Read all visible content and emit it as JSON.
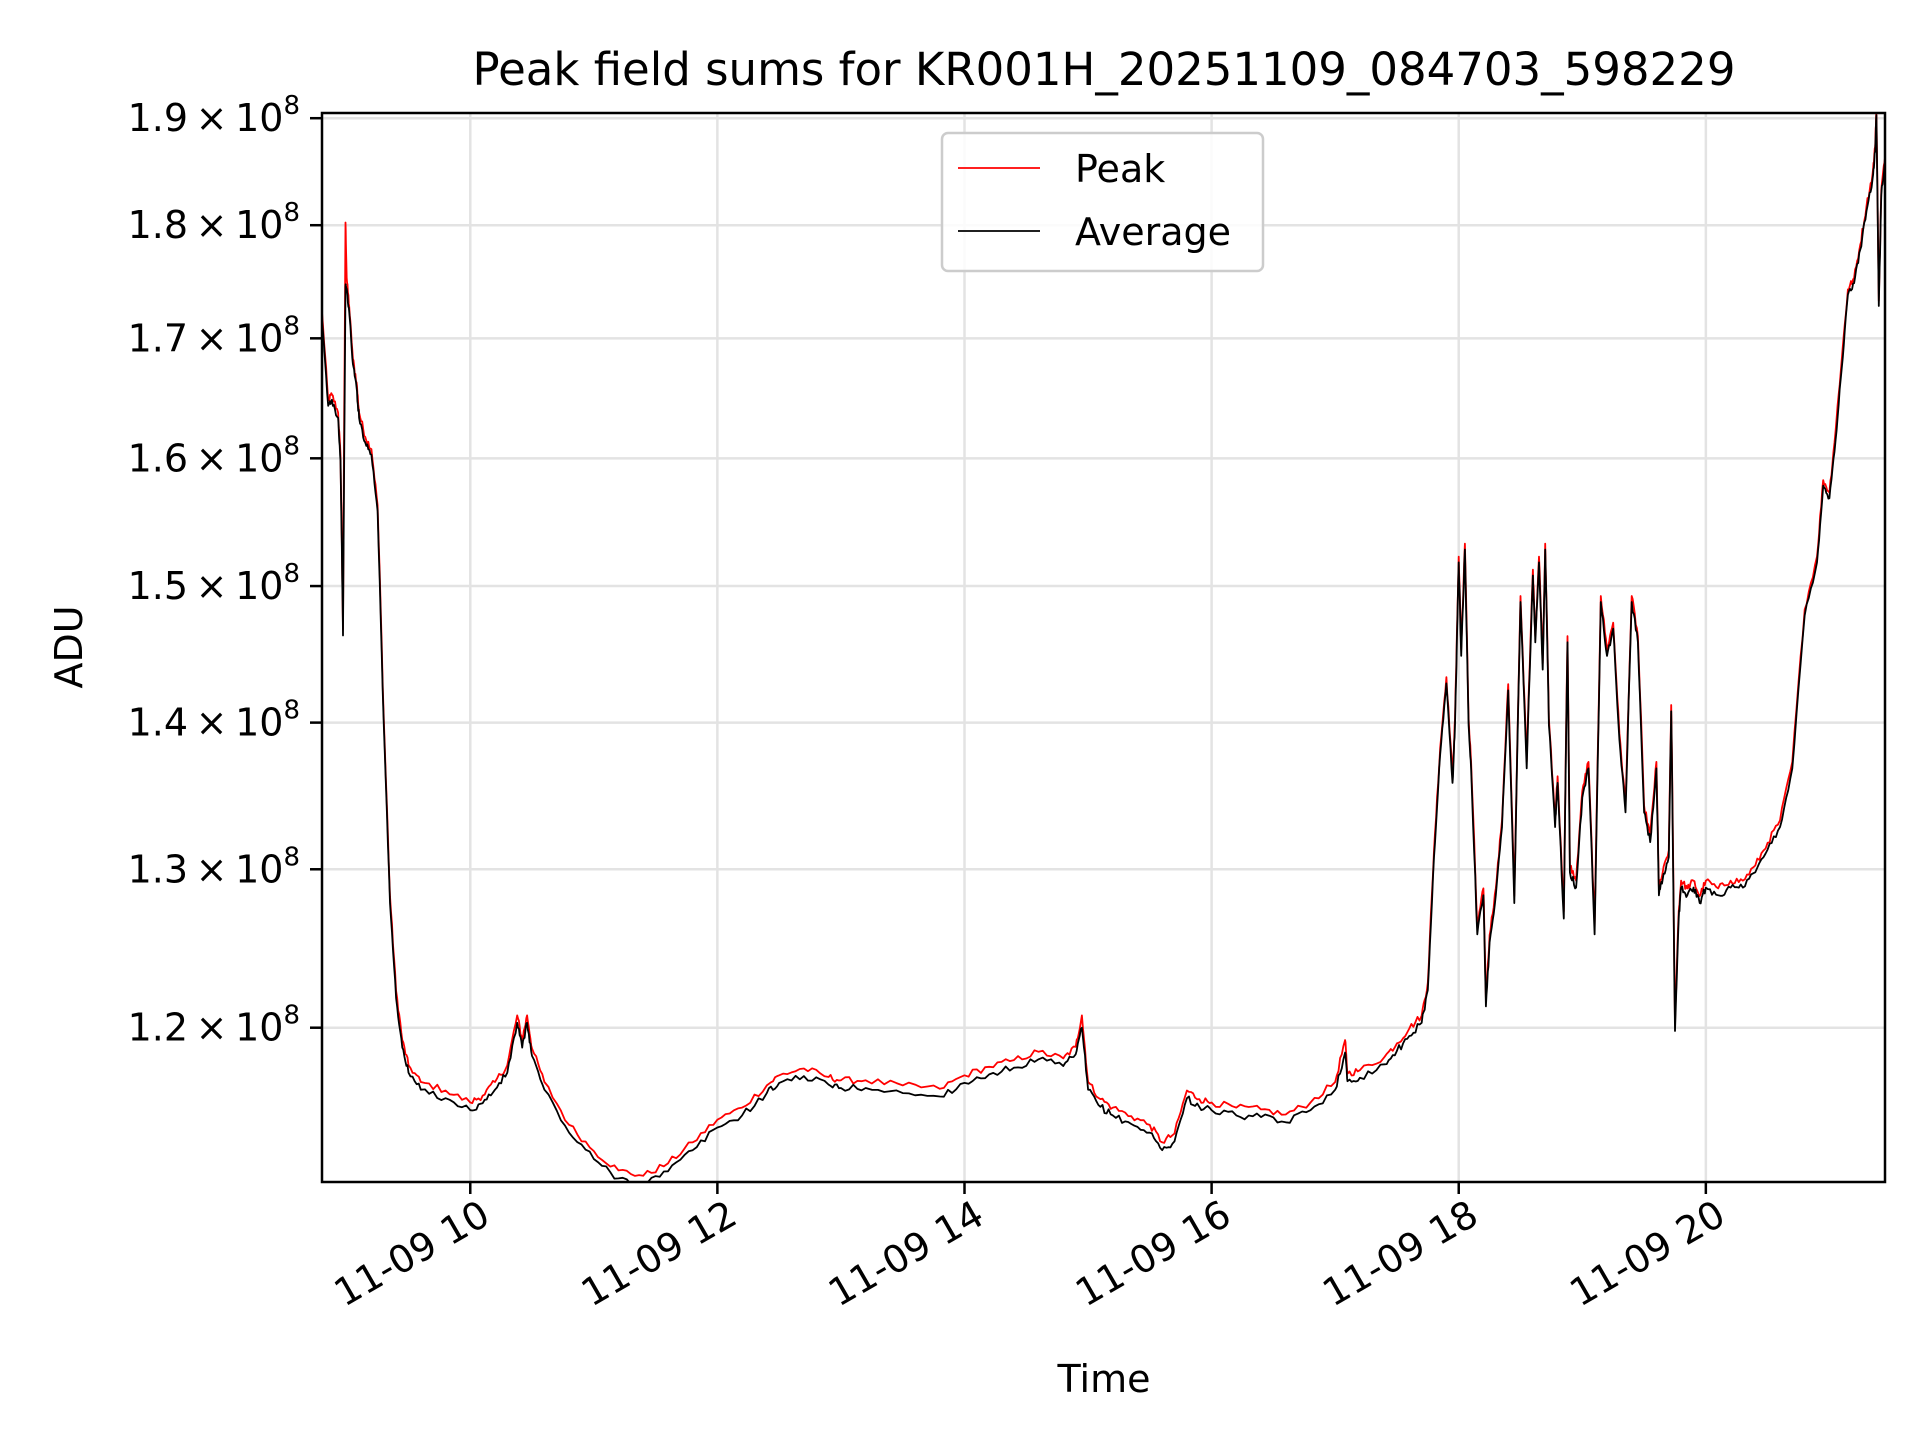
{
  "chart_data": {
    "type": "line",
    "title": "Peak field sums for KR001H_20251109_084703_598229",
    "xlabel": "Time",
    "ylabel": "ADU",
    "yscale": "log",
    "grid": true,
    "legend_position": "upper center",
    "xlim": [
      8.8,
      21.45
    ],
    "ylim": [
      111000000,
      190500000
    ],
    "x_ticks": [
      {
        "value": 10,
        "label": "11-09 10"
      },
      {
        "value": 12,
        "label": "11-09 12"
      },
      {
        "value": 14,
        "label": "11-09 14"
      },
      {
        "value": 16,
        "label": "11-09 16"
      },
      {
        "value": 18,
        "label": "11-09 18"
      },
      {
        "value": 20,
        "label": "11-09 20"
      }
    ],
    "y_ticks": [
      {
        "value": 120000000,
        "mantissa": "1.2",
        "times": "×",
        "base": "10",
        "exponent": "8"
      },
      {
        "value": 130000000,
        "mantissa": "1.3",
        "times": "×",
        "base": "10",
        "exponent": "8"
      },
      {
        "value": 140000000,
        "mantissa": "1.4",
        "times": "×",
        "base": "10",
        "exponent": "8"
      },
      {
        "value": 150000000,
        "mantissa": "1.5",
        "times": "×",
        "base": "10",
        "exponent": "8"
      },
      {
        "value": 160000000,
        "mantissa": "1.6",
        "times": "×",
        "base": "10",
        "exponent": "8"
      },
      {
        "value": 170000000,
        "mantissa": "1.7",
        "times": "×",
        "base": "10",
        "exponent": "8"
      },
      {
        "value": 180000000,
        "mantissa": "1.8",
        "times": "×",
        "base": "10",
        "exponent": "8"
      },
      {
        "value": 190000000,
        "mantissa": "1.9",
        "times": "×",
        "base": "10",
        "exponent": "8"
      }
    ],
    "series": [
      {
        "name": "Peak",
        "color": "#ff0000",
        "offset": 250000,
        "x": [
          8.8,
          8.85,
          8.88,
          8.93,
          8.95,
          8.97,
          8.99,
          9.0,
          9.02,
          9.05,
          9.08,
          9.1,
          9.15,
          9.2,
          9.25,
          9.3,
          9.35,
          9.4,
          9.45,
          9.5,
          9.6,
          9.8,
          10.0,
          10.1,
          10.2,
          10.3,
          10.38,
          10.42,
          10.46,
          10.5,
          10.6,
          10.8,
          11.0,
          11.2,
          11.4,
          11.6,
          11.8,
          12.0,
          12.2,
          12.4,
          12.5,
          12.7,
          12.9,
          13.0,
          13.2,
          13.5,
          13.8,
          14.0,
          14.2,
          14.4,
          14.6,
          14.8,
          14.9,
          14.95,
          15.0,
          15.1,
          15.2,
          15.35,
          15.5,
          15.6,
          15.7,
          15.8,
          15.9,
          16.0,
          16.2,
          16.4,
          16.6,
          16.8,
          17.0,
          17.08,
          17.1,
          17.2,
          17.4,
          17.5,
          17.6,
          17.7,
          17.75,
          17.8,
          17.85,
          17.9,
          17.95,
          17.97,
          18.0,
          18.02,
          18.05,
          18.08,
          18.1,
          18.15,
          18.2,
          18.22,
          18.25,
          18.3,
          18.35,
          18.4,
          18.45,
          18.5,
          18.55,
          18.6,
          18.62,
          18.65,
          18.68,
          18.7,
          18.73,
          18.78,
          18.8,
          18.85,
          18.88,
          18.9,
          18.95,
          19.0,
          19.05,
          19.1,
          19.15,
          19.2,
          19.25,
          19.3,
          19.35,
          19.4,
          19.45,
          19.5,
          19.55,
          19.6,
          19.62,
          19.65,
          19.7,
          19.72,
          19.75,
          19.78,
          19.8,
          19.85,
          19.9,
          19.95,
          20.0,
          20.1,
          20.2,
          20.3,
          20.4,
          20.5,
          20.6,
          20.7,
          20.8,
          20.9,
          20.95,
          21.0,
          21.05,
          21.1,
          21.15,
          21.2,
          21.25,
          21.3,
          21.35,
          21.37,
          21.38,
          21.4,
          21.42,
          21.45
        ],
        "values": [
          172000000,
          164500000,
          165000000,
          163500000,
          160000000,
          146500000,
          180000000,
          175000000,
          172500000,
          168000000,
          166000000,
          163500000,
          161500000,
          160500000,
          156000000,
          140000000,
          128000000,
          122000000,
          119000000,
          117500000,
          116500000,
          116000000,
          115300000,
          115700000,
          116500000,
          117500000,
          120500000,
          119000000,
          120500000,
          118500000,
          116500000,
          114000000,
          112500000,
          111400000,
          111100000,
          111800000,
          113000000,
          114300000,
          115000000,
          116300000,
          116900000,
          117300000,
          116800000,
          116600000,
          116600000,
          116300000,
          116100000,
          116900000,
          117400000,
          117800000,
          118300000,
          117900000,
          118600000,
          120500000,
          116500000,
          115500000,
          115000000,
          114500000,
          114000000,
          113000000,
          113500000,
          116000000,
          115500000,
          115300000,
          115000000,
          114900000,
          114600000,
          115300000,
          116500000,
          119000000,
          117000000,
          117200000,
          118000000,
          118800000,
          119700000,
          120500000,
          122500000,
          131000000,
          138000000,
          143000000,
          136000000,
          140000000,
          152000000,
          145000000,
          153000000,
          140000000,
          137000000,
          126000000,
          128500000,
          121500000,
          125500000,
          128500000,
          133000000,
          142500000,
          128000000,
          149000000,
          137000000,
          151000000,
          146000000,
          152000000,
          144000000,
          153000000,
          140000000,
          133000000,
          136000000,
          127000000,
          146000000,
          130000000,
          129000000,
          135000000,
          137000000,
          126000000,
          149000000,
          145000000,
          147000000,
          139000000,
          134000000,
          149000000,
          146000000,
          134000000,
          132000000,
          137000000,
          128500000,
          129500000,
          131000000,
          141000000,
          120000000,
          127000000,
          129000000,
          128500000,
          129000000,
          128000000,
          129000000,
          128500000,
          129000000,
          129000000,
          130000000,
          131500000,
          133000000,
          137000000,
          148000000,
          152000000,
          158000000,
          157000000,
          162000000,
          168000000,
          174000000,
          175000000,
          178000000,
          181500000,
          184500000,
          187000000,
          190500000,
          173000000,
          183000000,
          186000000
        ]
      },
      {
        "name": "Average",
        "color": "#000000",
        "offset": 0,
        "x": [
          8.8,
          8.85,
          8.88,
          8.93,
          8.95,
          8.97,
          8.99,
          9.0,
          9.02,
          9.05,
          9.08,
          9.1,
          9.15,
          9.2,
          9.25,
          9.3,
          9.35,
          9.4,
          9.45,
          9.5,
          9.6,
          9.8,
          10.0,
          10.1,
          10.2,
          10.3,
          10.38,
          10.42,
          10.46,
          10.5,
          10.6,
          10.8,
          11.0,
          11.2,
          11.4,
          11.6,
          11.8,
          12.0,
          12.2,
          12.4,
          12.5,
          12.7,
          12.9,
          13.0,
          13.2,
          13.5,
          13.8,
          14.0,
          14.2,
          14.4,
          14.6,
          14.8,
          14.9,
          14.95,
          15.0,
          15.1,
          15.2,
          15.35,
          15.5,
          15.6,
          15.7,
          15.8,
          15.9,
          16.0,
          16.2,
          16.4,
          16.6,
          16.8,
          17.0,
          17.08,
          17.1,
          17.2,
          17.4,
          17.5,
          17.6,
          17.7,
          17.75,
          17.8,
          17.85,
          17.9,
          17.95,
          17.97,
          18.0,
          18.02,
          18.05,
          18.08,
          18.1,
          18.15,
          18.2,
          18.22,
          18.25,
          18.3,
          18.35,
          18.4,
          18.45,
          18.5,
          18.55,
          18.6,
          18.62,
          18.65,
          18.68,
          18.7,
          18.73,
          18.78,
          18.8,
          18.85,
          18.88,
          18.9,
          18.95,
          19.0,
          19.05,
          19.1,
          19.15,
          19.2,
          19.25,
          19.3,
          19.35,
          19.4,
          19.45,
          19.5,
          19.55,
          19.6,
          19.62,
          19.65,
          19.7,
          19.72,
          19.75,
          19.78,
          19.8,
          19.85,
          19.9,
          19.95,
          20.0,
          20.1,
          20.2,
          20.3,
          20.4,
          20.5,
          20.6,
          20.7,
          20.8,
          20.9,
          20.95,
          21.0,
          21.05,
          21.1,
          21.15,
          21.2,
          21.25,
          21.3,
          21.35,
          21.37,
          21.38,
          21.4,
          21.42,
          21.45
        ],
        "values": [
          171500000,
          164300000,
          164800000,
          163300000,
          159800000,
          146300000,
          174500000,
          174300000,
          172300000,
          167800000,
          165800000,
          163300000,
          161300000,
          160300000,
          155800000,
          139800000,
          127800000,
          121800000,
          118800000,
          117300000,
          116300000,
          115800000,
          115100000,
          115500000,
          116300000,
          117300000,
          120300000,
          118800000,
          120300000,
          118300000,
          116300000,
          113800000,
          112300000,
          111200000,
          110900000,
          111600000,
          112800000,
          114100000,
          114800000,
          116100000,
          116700000,
          117100000,
          116600000,
          116400000,
          116400000,
          116100000,
          115900000,
          116700000,
          117200000,
          117600000,
          118100000,
          117700000,
          118400000,
          120000000,
          116300000,
          115300000,
          114800000,
          114300000,
          113800000,
          112800000,
          113300000,
          115800000,
          115300000,
          115100000,
          114800000,
          114700000,
          114400000,
          115100000,
          116300000,
          118500000,
          116800000,
          117000000,
          117800000,
          118600000,
          119500000,
          120300000,
          122300000,
          130800000,
          137800000,
          142800000,
          135800000,
          139800000,
          151800000,
          144800000,
          152800000,
          139800000,
          136800000,
          125800000,
          128300000,
          121300000,
          125300000,
          128300000,
          132800000,
          142300000,
          127800000,
          148800000,
          136800000,
          150800000,
          145800000,
          151800000,
          143800000,
          152800000,
          139800000,
          132800000,
          135800000,
          126800000,
          145800000,
          129800000,
          128800000,
          134800000,
          136800000,
          125800000,
          148800000,
          144800000,
          146800000,
          138800000,
          133800000,
          148800000,
          145800000,
          133800000,
          131800000,
          136800000,
          128300000,
          129300000,
          130800000,
          140800000,
          119800000,
          126800000,
          128800000,
          128300000,
          128800000,
          127800000,
          128800000,
          128300000,
          128800000,
          128800000,
          129800000,
          131300000,
          132800000,
          136800000,
          147800000,
          151800000,
          157800000,
          156800000,
          161500000,
          167500000,
          173800000,
          174800000,
          177800000,
          181300000,
          184300000,
          186800000,
          190300000,
          172800000,
          182800000,
          185800000
        ]
      }
    ]
  }
}
